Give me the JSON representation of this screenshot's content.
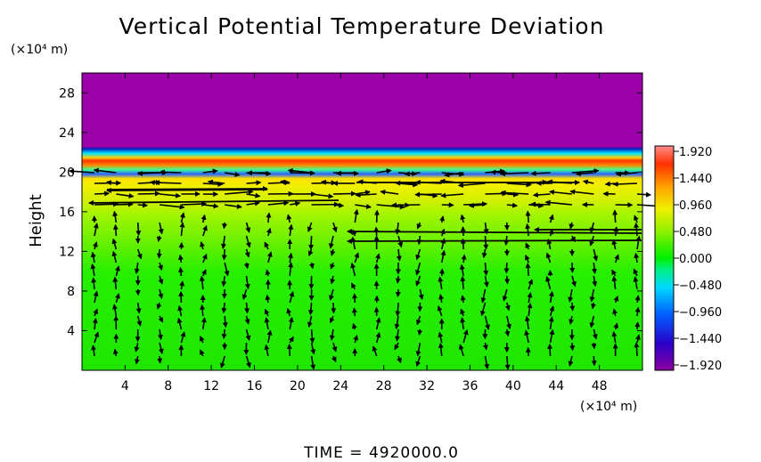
{
  "chart_data": {
    "type": "heatmap",
    "title": "Vertical Potential Temperature Deviation",
    "ylabel": "Height",
    "y_unit_label": "(×10⁴ m)",
    "x_unit_label": "(×10⁴ m)",
    "x_ticks": [
      "4",
      "8",
      "12",
      "16",
      "20",
      "24",
      "28",
      "32",
      "36",
      "40",
      "44",
      "48"
    ],
    "y_ticks": [
      "4",
      "8",
      "12",
      "16",
      "20",
      "24",
      "28"
    ],
    "xlim": [
      0,
      52
    ],
    "ylim": [
      0,
      30
    ],
    "colorbar": {
      "ticks": [
        "1.920",
        "1.440",
        "0.960",
        "0.480",
        "0.000",
        "−0.480",
        "−0.960",
        "−1.440",
        "−1.920"
      ],
      "range": [
        -1.92,
        1.92
      ]
    },
    "overlay": "wind vectors",
    "bands": [
      {
        "from_height": 0,
        "to_height": 10,
        "value": 0.0
      },
      {
        "from_height": 10,
        "to_height": 14,
        "value": 0.3
      },
      {
        "from_height": 14,
        "to_height": 18,
        "value": 0.5
      },
      {
        "from_height": 18,
        "to_height": 19.5,
        "value": 0.8
      },
      {
        "from_height": 19.5,
        "to_height": 20.5,
        "value": 0.3
      },
      {
        "from_height": 20.5,
        "to_height": 21.5,
        "value": 1.4
      },
      {
        "from_height": 21.5,
        "to_height": 22.5,
        "value": -1.0
      },
      {
        "from_height": 22.5,
        "to_height": 30,
        "value": -1.92
      }
    ],
    "footer": "TIME  =  4920000.0"
  },
  "colors": {
    "background": "#ffffff",
    "above_layer": "#9b00a9",
    "base_layer": "#00ee00"
  }
}
